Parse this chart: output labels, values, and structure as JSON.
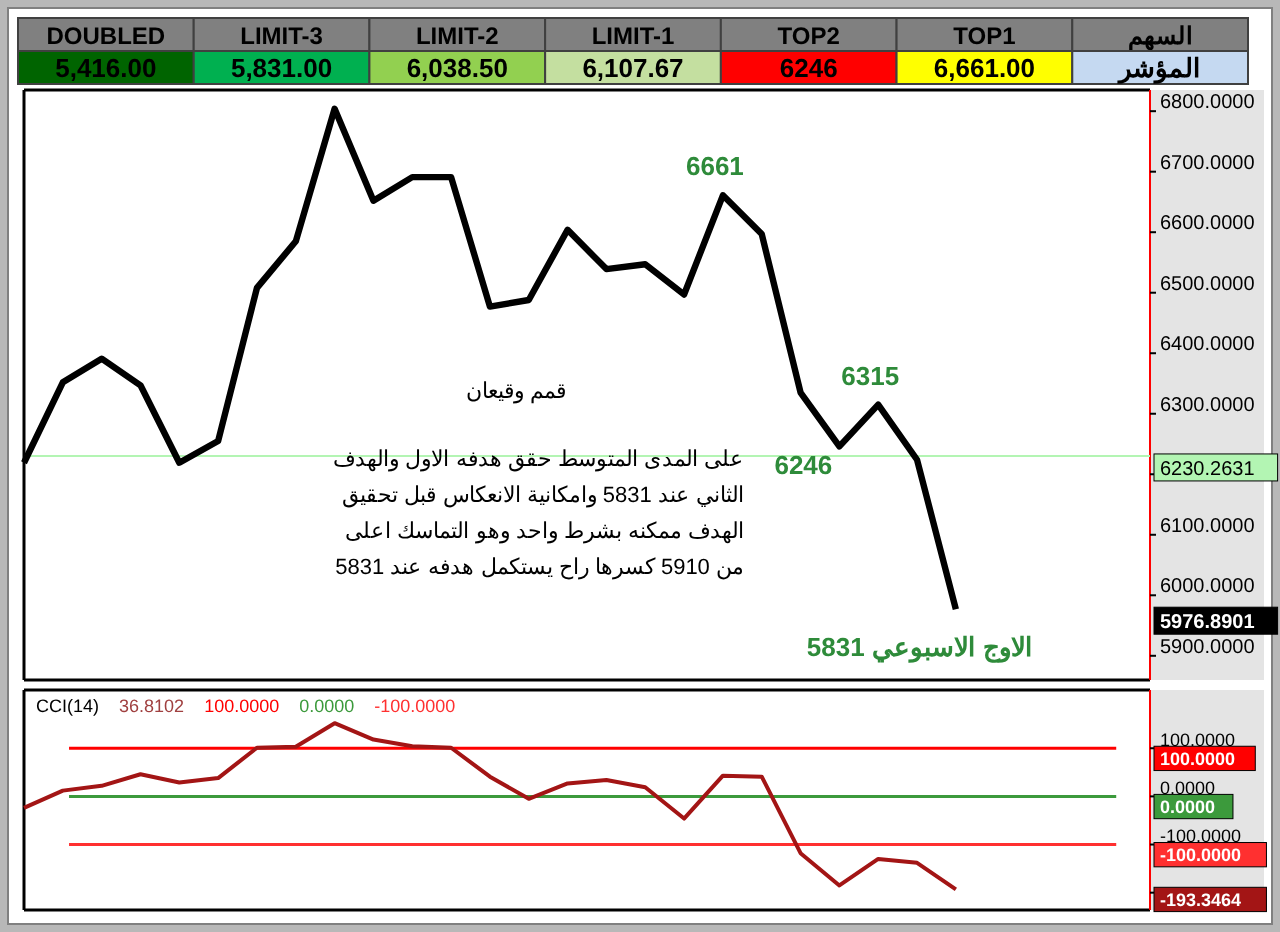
{
  "chart_data": [
    {
      "type": "other",
      "cell_labels": [
        [
          "DOUBLED",
          "LIMIT-3",
          "LIMIT-2",
          "LIMIT-1",
          "TOP2",
          "TOP1",
          "السهم"
        ],
        [
          "5,416.00",
          "5,831.00",
          "6,038.50",
          "6,107.67",
          "6246",
          "6,661.00",
          "المؤشر"
        ]
      ],
      "colors": [
        "#006400",
        "#00b050",
        "#92d050",
        "#c4dfa0",
        "#ff0000",
        "#ffff00",
        "#c5d9f1"
      ]
    },
    {
      "type": "line",
      "categories": [
        null,
        null,
        null,
        null,
        null,
        null,
        null,
        null,
        null,
        null,
        null,
        null,
        null,
        null,
        null,
        null,
        null,
        null,
        null,
        null,
        null,
        null,
        null,
        null,
        null,
        null,
        null,
        null,
        null,
        null
      ],
      "series": [
        {
          "color": "#000000",
          "values": [
            6219,
            6352,
            6391,
            6347,
            6219,
            6255,
            6508,
            6585,
            6804,
            6652,
            6691,
            6691,
            6477,
            6488,
            6604,
            6539,
            6547,
            6497,
            6661,
            6597,
            6335,
            6246,
            6315,
            6224,
            5977,
            null,
            null,
            null,
            null,
            null
          ],
          "value_labels": [
            null,
            null,
            null,
            null,
            null,
            null,
            null,
            null,
            null,
            null,
            null,
            null,
            null,
            null,
            null,
            null,
            null,
            null,
            "6661",
            null,
            null,
            "6246",
            "6315",
            null,
            null,
            null,
            null,
            null,
            null,
            null
          ]
        }
      ],
      "ylim": [
        5860,
        6835
      ],
      "yticks": [
        {
          "value": 5900,
          "label": "5900.0000"
        },
        {
          "value": 6000,
          "label": "6000.0000"
        },
        {
          "value": 6100,
          "label": "6100.0000"
        },
        {
          "value": 6200,
          "label": null
        },
        {
          "value": 6300,
          "label": "6300.0000"
        },
        {
          "value": 6400,
          "label": "6400.0000"
        },
        {
          "value": 6500,
          "label": "6500.0000"
        },
        {
          "value": 6600,
          "label": "6600.0000"
        },
        {
          "value": 6700,
          "label": "6700.0000"
        },
        {
          "value": 6800,
          "label": "6800.0000"
        }
      ],
      "ref_lines": [
        {
          "axis": "y",
          "value": 6230.2631,
          "label": "6230.2631",
          "color": "#b3f5b3"
        }
      ],
      "annotations": [
        "قمم وقيعان",
        "على المدى المتوسط حقق هدفه الاول والهدف",
        "الثاني عند 5831 وامكانية الانعكاس قبل تحقيق",
        "الهدف ممكنه بشرط واحد وهو التماسك  اعلى",
        "من 5910 كسرها راح يستكمل هدفه عند 5831",
        "5831 الاوج الاسبوعي",
        "5976.8901"
      ]
    },
    {
      "type": "line",
      "title": "CCI(14)",
      "categories": [
        null,
        null,
        null,
        null,
        null,
        null,
        null,
        null,
        null,
        null,
        null,
        null,
        null,
        null,
        null,
        null,
        null,
        null,
        null,
        null,
        null,
        null,
        null,
        null,
        null,
        null,
        null,
        null,
        null,
        null
      ],
      "series": [
        {
          "color": "#a31515",
          "values": [
            -24,
            12,
            22,
            46,
            29,
            38,
            101,
            103,
            152,
            118,
            104,
            101,
            41,
            -5,
            27,
            34,
            19,
            -46,
            43,
            41,
            -118,
            -185,
            -130,
            -138,
            -193,
            null,
            null,
            null,
            null,
            null
          ]
        }
      ],
      "ylim": [
        -236,
        221
      ],
      "yticks": [
        {
          "value": -200,
          "label": null
        },
        {
          "value": -100,
          "label": "-100.0000"
        },
        {
          "value": 0,
          "label": "0.0000"
        },
        {
          "value": 100,
          "label": "100.0000"
        }
      ],
      "ref_lines": [
        {
          "axis": "y",
          "value": 100,
          "label": "100.0000",
          "color": "#ff0000"
        },
        {
          "axis": "y",
          "value": 0,
          "label": "0.0000",
          "color": "#3c9a3c"
        },
        {
          "axis": "y",
          "value": -100,
          "label": "-100.0000",
          "color": "#ff3030"
        }
      ],
      "annotations": [
        "36.8102",
        "-193.3464"
      ]
    }
  ]
}
